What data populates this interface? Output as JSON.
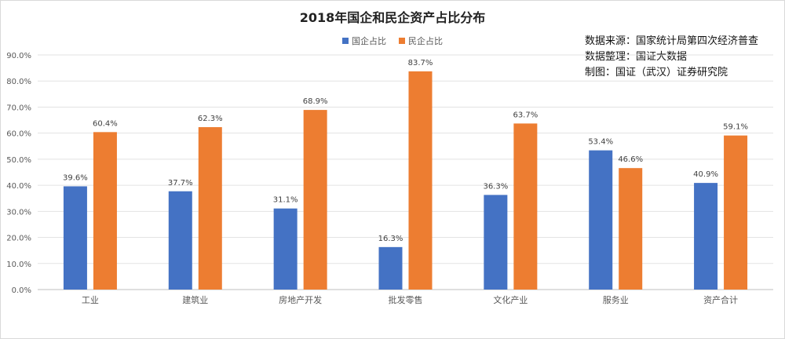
{
  "chart_data": {
    "type": "bar",
    "title": "2018年国企和民企资产占比分布",
    "categories": [
      "工业",
      "建筑业",
      "房地产开发",
      "批发零售",
      "文化产业",
      "服务业",
      "资产合计"
    ],
    "series": [
      {
        "name": "国企占比",
        "color": "#4472C4",
        "values": [
          39.6,
          37.7,
          31.1,
          16.3,
          36.3,
          53.4,
          40.9
        ]
      },
      {
        "name": "民企占比",
        "color": "#ED7D31",
        "values": [
          60.4,
          62.3,
          68.9,
          83.7,
          63.7,
          46.6,
          59.1
        ]
      }
    ],
    "ylim": [
      0,
      90
    ],
    "yticks": [
      0,
      10,
      20,
      30,
      40,
      50,
      60,
      70,
      80,
      90
    ],
    "ytick_labels": [
      "0.0%",
      "10.0%",
      "20.0%",
      "30.0%",
      "40.0%",
      "50.0%",
      "60.0%",
      "70.0%",
      "80.0%",
      "90.0%"
    ],
    "data_labels": [
      [
        "39.6%",
        "37.7%",
        "31.1%",
        "16.3%",
        "36.3%",
        "53.4%",
        "40.9%"
      ],
      [
        "60.4%",
        "62.3%",
        "68.9%",
        "83.7%",
        "63.7%",
        "46.6%",
        "59.1%"
      ]
    ],
    "grid": true,
    "legend_position": "top-center"
  },
  "source_notes": [
    "数据来源：国家统计局第四次经济普查",
    "数据整理：国证大数据",
    "制图：国证（武汉）证券研究院"
  ]
}
